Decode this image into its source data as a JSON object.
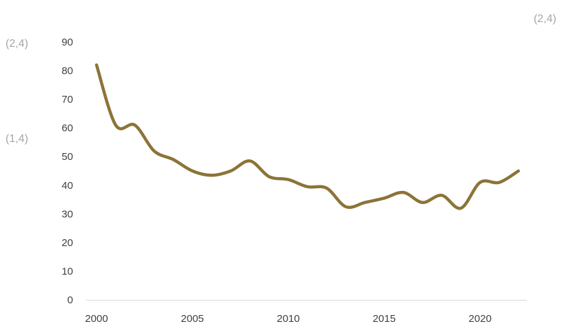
{
  "chart_data": {
    "type": "line",
    "title": "",
    "xlabel": "",
    "ylabel": "",
    "xlim": [
      2000,
      2022
    ],
    "ylim": [
      0,
      90
    ],
    "yticks": [
      0,
      10,
      20,
      30,
      40,
      50,
      60,
      70,
      80,
      90
    ],
    "xticks": [
      2000,
      2005,
      2010,
      2015,
      2020
    ],
    "grid": false,
    "legend": "none",
    "series": [
      {
        "color": "#8c7437",
        "x": [
          2000,
          2001,
          2002,
          2003,
          2004,
          2005,
          2006,
          2007,
          2008,
          2009,
          2010,
          2011,
          2012,
          2013,
          2014,
          2015,
          2016,
          2017,
          2018,
          2019,
          2020,
          2021,
          2022
        ],
        "values": [
          82,
          61,
          61,
          52,
          49,
          45,
          43.5,
          45,
          48.5,
          43,
          42,
          39.5,
          39,
          32.5,
          34,
          35.5,
          37.5,
          34,
          36.5,
          32,
          41,
          41,
          45
        ]
      }
    ],
    "annotations": [
      {
        "text": "(2,4)",
        "position": "top-right"
      },
      {
        "text": "(2,4)",
        "position": "left-upper"
      },
      {
        "text": "(1,4)",
        "position": "left-middle"
      }
    ]
  }
}
